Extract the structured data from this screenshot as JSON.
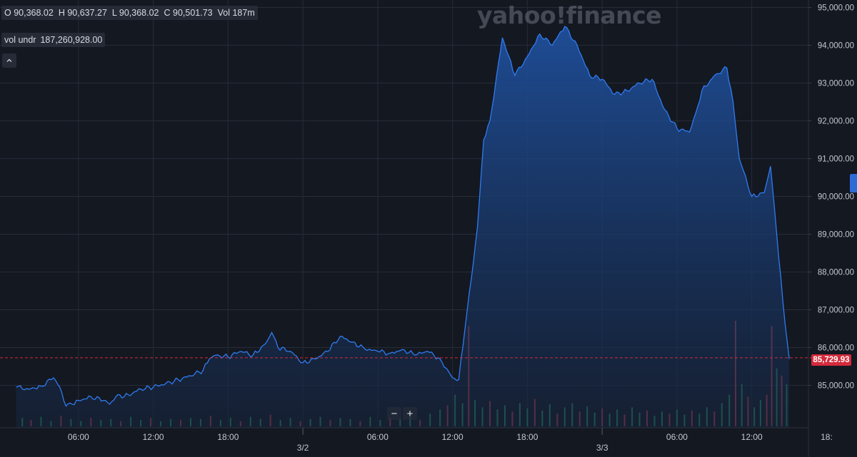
{
  "watermark": "yahoo!finance",
  "ohlc": {
    "open": "O 90,368.02",
    "high": "H 90,637.27",
    "low": "L 90,368.02",
    "close": "C 90,501.73",
    "volume": "Vol 187m"
  },
  "volume_info": {
    "label": "vol undr",
    "value": "187,260,928.00"
  },
  "collapse_icon": "chevron-up-icon",
  "zoom": {
    "minus": "−",
    "plus": "+"
  },
  "current_price_label": "85,729.93",
  "colors": {
    "background": "#141821",
    "line": "#2f7bf0",
    "fill_top": "#1e4c94",
    "grid": "#262c38",
    "volume_up": "#2e9e63",
    "volume_down": "#c8434f",
    "price_marker": "#d42a3c"
  },
  "chart_data": {
    "type": "area",
    "ylim": [
      84000,
      95000
    ],
    "y_ticks": [
      85000,
      86000,
      87000,
      88000,
      89000,
      90000,
      91000,
      92000,
      93000,
      94000,
      95000
    ],
    "y_tick_labels": [
      "85,000.00",
      "86,000.00",
      "87,000.00",
      "88,000.00",
      "89,000.00",
      "90,000.00",
      "91,000.00",
      "92,000.00",
      "93,000.00",
      "94,000.00",
      "95,000.00"
    ],
    "x_time_range": [
      1,
      54.3
    ],
    "x_ticks": [
      {
        "t": 6,
        "label": "06:00"
      },
      {
        "t": 12,
        "label": "12:00"
      },
      {
        "t": 18,
        "label": "18:00"
      },
      {
        "t": 24,
        "label": "3/2"
      },
      {
        "t": 30,
        "label": "06:00"
      },
      {
        "t": 36,
        "label": "12:00"
      },
      {
        "t": 42,
        "label": "18:00"
      },
      {
        "t": 48,
        "label": "3/3"
      },
      {
        "t": 54,
        "label": "06:00"
      },
      {
        "t": 60,
        "label": "12:00"
      },
      {
        "t": 66,
        "label": "18:"
      }
    ],
    "current_price": 85729.93,
    "series": [
      {
        "x": [
          1.0,
          2.0,
          3.0,
          4.0,
          4.5,
          5.0,
          5.5,
          6.0,
          7.0,
          8.0,
          8.5,
          9.0,
          10.0,
          11.0,
          12.0,
          13.0,
          14.0,
          15.0,
          16.0,
          16.5,
          17.0,
          18.0,
          19.0,
          20.0,
          21.0,
          21.5,
          22.0,
          23.0,
          24.0,
          25.0,
          26.0,
          27.0,
          28.0,
          29.0,
          30.0,
          31.0,
          32.0,
          33.0,
          34.0,
          35.0,
          36.0,
          36.5,
          37.0,
          37.5,
          38.0,
          38.5,
          39.0,
          40.0,
          41.0,
          42.0,
          43.0,
          44.0,
          45.0,
          46.0,
          47.0,
          48.0,
          49.0,
          50.0,
          51.0,
          52.0,
          53.0,
          54.0,
          55.0,
          55.5,
          56.0,
          57.0,
          58.0,
          58.5,
          59.0,
          60.0,
          61.0,
          61.5,
          62.0,
          62.5,
          63.0
        ],
        "y": [
          84950,
          84900,
          84980,
          85200,
          84950,
          84450,
          84500,
          84600,
          84700,
          84600,
          84500,
          84700,
          84750,
          84900,
          84950,
          85050,
          85150,
          85250,
          85400,
          85700,
          85800,
          85750,
          85900,
          85800,
          86100,
          86400,
          86000,
          85900,
          85600,
          85700,
          85900,
          86300,
          86150,
          85950,
          85900,
          85850,
          85950,
          85800,
          85900,
          85700,
          85200,
          85150,
          86500,
          87800,
          89200,
          91500,
          92000,
          94200,
          93200,
          93700,
          94300,
          94000,
          94500,
          94000,
          93200,
          93100,
          92700,
          92800,
          93000,
          93100,
          92300,
          91800,
          91700,
          92200,
          92800,
          93200,
          93400,
          92500,
          91000,
          90000,
          90100,
          90800,
          89000,
          87200,
          85700
        ]
      }
    ],
    "volume": [
      {
        "t": 1.5,
        "v": 0.08,
        "dir": "up"
      },
      {
        "t": 2.2,
        "v": 0.06,
        "dir": "down"
      },
      {
        "t": 3.0,
        "v": 0.09,
        "dir": "up"
      },
      {
        "t": 3.8,
        "v": 0.05,
        "dir": "up"
      },
      {
        "t": 4.6,
        "v": 0.1,
        "dir": "down"
      },
      {
        "t": 5.4,
        "v": 0.07,
        "dir": "up"
      },
      {
        "t": 6.2,
        "v": 0.05,
        "dir": "up"
      },
      {
        "t": 7.0,
        "v": 0.08,
        "dir": "down"
      },
      {
        "t": 7.8,
        "v": 0.06,
        "dir": "up"
      },
      {
        "t": 8.6,
        "v": 0.07,
        "dir": "up"
      },
      {
        "t": 9.4,
        "v": 0.05,
        "dir": "down"
      },
      {
        "t": 10.2,
        "v": 0.09,
        "dir": "up"
      },
      {
        "t": 11.0,
        "v": 0.06,
        "dir": "up"
      },
      {
        "t": 11.8,
        "v": 0.08,
        "dir": "down"
      },
      {
        "t": 12.6,
        "v": 0.05,
        "dir": "up"
      },
      {
        "t": 13.4,
        "v": 0.07,
        "dir": "up"
      },
      {
        "t": 14.2,
        "v": 0.06,
        "dir": "down"
      },
      {
        "t": 15.0,
        "v": 0.08,
        "dir": "up"
      },
      {
        "t": 15.8,
        "v": 0.07,
        "dir": "up"
      },
      {
        "t": 16.6,
        "v": 0.1,
        "dir": "down"
      },
      {
        "t": 17.4,
        "v": 0.06,
        "dir": "up"
      },
      {
        "t": 18.2,
        "v": 0.08,
        "dir": "up"
      },
      {
        "t": 19.0,
        "v": 0.05,
        "dir": "down"
      },
      {
        "t": 19.8,
        "v": 0.09,
        "dir": "up"
      },
      {
        "t": 20.6,
        "v": 0.07,
        "dir": "up"
      },
      {
        "t": 21.4,
        "v": 0.11,
        "dir": "down"
      },
      {
        "t": 22.2,
        "v": 0.06,
        "dir": "up"
      },
      {
        "t": 23.0,
        "v": 0.08,
        "dir": "up"
      },
      {
        "t": 23.8,
        "v": 0.05,
        "dir": "down"
      },
      {
        "t": 24.6,
        "v": 0.07,
        "dir": "up"
      },
      {
        "t": 25.4,
        "v": 0.09,
        "dir": "up"
      },
      {
        "t": 26.2,
        "v": 0.06,
        "dir": "down"
      },
      {
        "t": 27.0,
        "v": 0.08,
        "dir": "up"
      },
      {
        "t": 27.8,
        "v": 0.07,
        "dir": "up"
      },
      {
        "t": 28.6,
        "v": 0.05,
        "dir": "down"
      },
      {
        "t": 29.4,
        "v": 0.09,
        "dir": "up"
      },
      {
        "t": 30.2,
        "v": 0.06,
        "dir": "up"
      },
      {
        "t": 31.0,
        "v": 0.08,
        "dir": "down"
      },
      {
        "t": 31.8,
        "v": 0.07,
        "dir": "up"
      },
      {
        "t": 32.6,
        "v": 0.1,
        "dir": "up"
      },
      {
        "t": 33.4,
        "v": 0.06,
        "dir": "down"
      },
      {
        "t": 34.2,
        "v": 0.12,
        "dir": "up"
      },
      {
        "t": 35.0,
        "v": 0.16,
        "dir": "up"
      },
      {
        "t": 35.6,
        "v": 0.2,
        "dir": "down"
      },
      {
        "t": 36.2,
        "v": 0.3,
        "dir": "up"
      },
      {
        "t": 36.8,
        "v": 0.22,
        "dir": "up"
      },
      {
        "t": 37.3,
        "v": 0.95,
        "dir": "down"
      },
      {
        "t": 37.8,
        "v": 0.25,
        "dir": "up"
      },
      {
        "t": 38.4,
        "v": 0.18,
        "dir": "up"
      },
      {
        "t": 39.0,
        "v": 0.24,
        "dir": "down"
      },
      {
        "t": 39.6,
        "v": 0.16,
        "dir": "up"
      },
      {
        "t": 40.2,
        "v": 0.2,
        "dir": "up"
      },
      {
        "t": 40.8,
        "v": 0.14,
        "dir": "down"
      },
      {
        "t": 41.4,
        "v": 0.22,
        "dir": "up"
      },
      {
        "t": 42.0,
        "v": 0.17,
        "dir": "up"
      },
      {
        "t": 42.6,
        "v": 0.26,
        "dir": "down"
      },
      {
        "t": 43.2,
        "v": 0.15,
        "dir": "up"
      },
      {
        "t": 43.8,
        "v": 0.21,
        "dir": "up"
      },
      {
        "t": 44.4,
        "v": 0.12,
        "dir": "down"
      },
      {
        "t": 45.0,
        "v": 0.18,
        "dir": "up"
      },
      {
        "t": 45.6,
        "v": 0.22,
        "dir": "up"
      },
      {
        "t": 46.2,
        "v": 0.14,
        "dir": "down"
      },
      {
        "t": 46.8,
        "v": 0.19,
        "dir": "up"
      },
      {
        "t": 47.4,
        "v": 0.13,
        "dir": "up"
      },
      {
        "t": 48.0,
        "v": 0.17,
        "dir": "down"
      },
      {
        "t": 48.6,
        "v": 0.12,
        "dir": "up"
      },
      {
        "t": 49.2,
        "v": 0.16,
        "dir": "up"
      },
      {
        "t": 49.8,
        "v": 0.11,
        "dir": "down"
      },
      {
        "t": 50.4,
        "v": 0.18,
        "dir": "up"
      },
      {
        "t": 51.0,
        "v": 0.13,
        "dir": "up"
      },
      {
        "t": 51.6,
        "v": 0.15,
        "dir": "down"
      },
      {
        "t": 52.2,
        "v": 0.1,
        "dir": "up"
      },
      {
        "t": 52.8,
        "v": 0.14,
        "dir": "up"
      },
      {
        "t": 53.4,
        "v": 0.12,
        "dir": "down"
      },
      {
        "t": 54.0,
        "v": 0.16,
        "dir": "up"
      },
      {
        "t": 54.6,
        "v": 0.11,
        "dir": "up"
      },
      {
        "t": 55.2,
        "v": 0.15,
        "dir": "down"
      },
      {
        "t": 55.8,
        "v": 0.12,
        "dir": "up"
      },
      {
        "t": 56.4,
        "v": 0.18,
        "dir": "up"
      },
      {
        "t": 57.0,
        "v": 0.14,
        "dir": "down"
      },
      {
        "t": 57.6,
        "v": 0.22,
        "dir": "up"
      },
      {
        "t": 58.2,
        "v": 0.3,
        "dir": "up"
      },
      {
        "t": 58.7,
        "v": 1.0,
        "dir": "down"
      },
      {
        "t": 59.2,
        "v": 0.4,
        "dir": "up"
      },
      {
        "t": 59.7,
        "v": 0.28,
        "dir": "down"
      },
      {
        "t": 60.2,
        "v": 0.18,
        "dir": "up"
      },
      {
        "t": 60.7,
        "v": 0.25,
        "dir": "up"
      },
      {
        "t": 61.2,
        "v": 0.3,
        "dir": "down"
      },
      {
        "t": 61.6,
        "v": 0.95,
        "dir": "down"
      },
      {
        "t": 62.0,
        "v": 0.55,
        "dir": "up"
      },
      {
        "t": 62.4,
        "v": 0.48,
        "dir": "down"
      },
      {
        "t": 62.8,
        "v": 0.4,
        "dir": "up"
      }
    ]
  }
}
